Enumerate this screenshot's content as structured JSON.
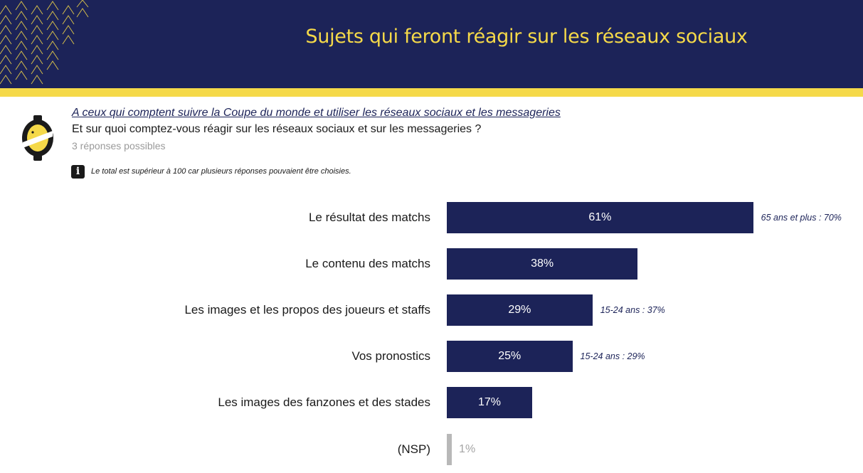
{
  "header": {
    "title": "Sujets qui feront réagir sur les réseaux sociaux",
    "background": "#1c2358",
    "title_color": "#f5d949",
    "accent_color": "#f5d949"
  },
  "logo": {
    "icon": "survey-logo-icon",
    "colors": [
      "#1a1a1a",
      "#f5d949"
    ]
  },
  "question": {
    "population": "A ceux qui comptent suivre la Coupe du monde et utiliser les réseaux sociaux et les messageries",
    "text": "Et sur quoi comptez-vous réagir sur les réseaux sociaux et sur les messageries ?",
    "instruction": "3 réponses possibles"
  },
  "note": {
    "icon": "info-icon",
    "icon_glyph": "i",
    "text": "Le total est supérieur à 100 car plusieurs réponses pouvaient être choisies."
  },
  "chart_data": {
    "type": "bar",
    "orientation": "horizontal",
    "categories": [
      "Le résultat des matchs",
      "Le contenu des matchs",
      "Les images et les propos des joueurs et staffs",
      "Vos pronostics",
      "Les images des fanzones et des stades",
      "(NSP)"
    ],
    "values": [
      61,
      38,
      29,
      25,
      17,
      1
    ],
    "value_labels": [
      "61%",
      "38%",
      "29%",
      "25%",
      "17%",
      "1%"
    ],
    "annotations": [
      "65 ans et plus : 70%",
      "",
      "15-24 ans : 37%",
      "15-24 ans : 29%",
      "",
      ""
    ],
    "bar_color": "#1c2358",
    "nsp_bar_color": "#b8b8b8",
    "value_label_color": "#ffffff",
    "nsp_label_color": "#a5a5a5",
    "annotation_color": "#1c2358",
    "grid": false,
    "legend": "none"
  }
}
